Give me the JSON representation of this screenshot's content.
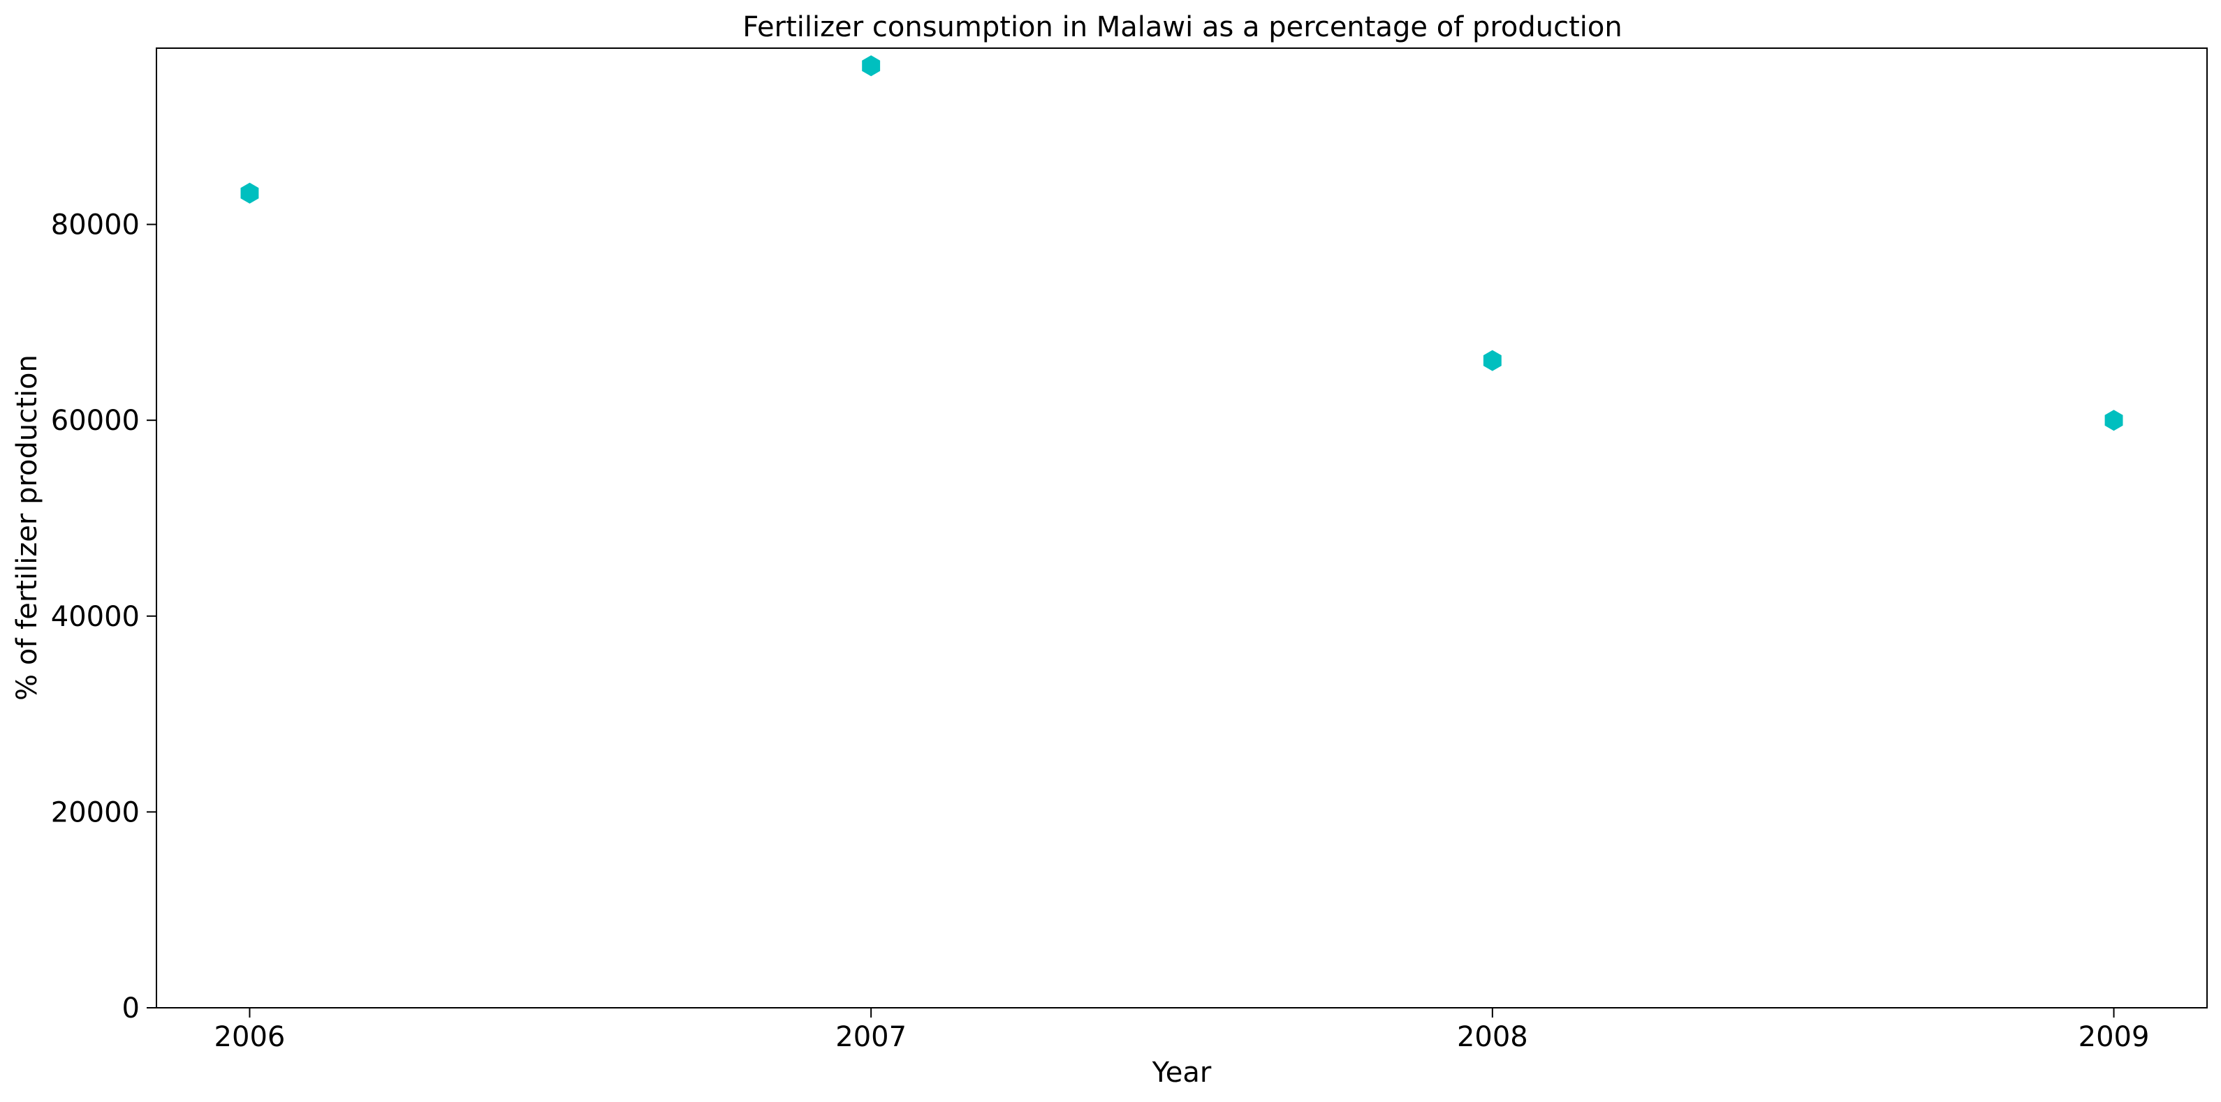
{
  "chart_data": {
    "type": "scatter",
    "title": "Fertilizer consumption in Malawi as a percentage of production",
    "xlabel": "Year",
    "ylabel": "% of fertilizer production",
    "x": [
      2006,
      2007,
      2008,
      2009
    ],
    "series": [
      {
        "values": [
          83200,
          96200,
          66100,
          60000
        ],
        "color": "#00bfbf",
        "marker": "hexagon"
      }
    ],
    "xticks": [
      "2006",
      "2007",
      "2008",
      "2009"
    ],
    "yticks": [
      "0",
      "20000",
      "40000",
      "60000",
      "80000"
    ],
    "xlim": [
      2005.85,
      2009.15
    ],
    "ylim": [
      0,
      98000
    ],
    "grid": false,
    "legend": "none"
  }
}
